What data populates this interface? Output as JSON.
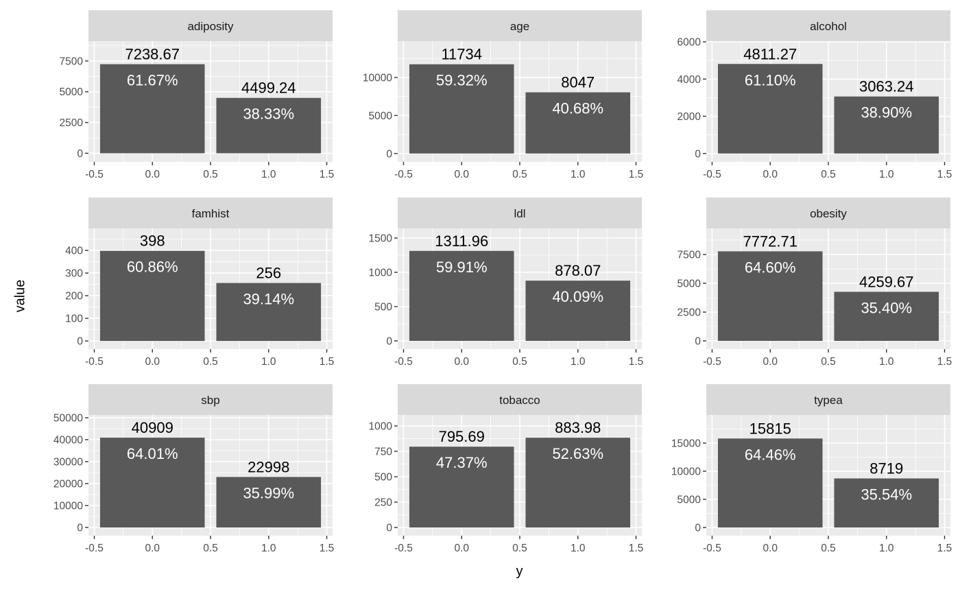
{
  "chart_data": {
    "type": "bar",
    "xlabel": "y",
    "ylabel": "value",
    "x_ticks": [
      -0.5,
      0.0,
      0.5,
      1.0,
      1.5
    ],
    "x_tick_labels": [
      "-0.5",
      "0.0",
      "0.5",
      "1.0",
      "1.5"
    ],
    "xlim": [
      -0.55,
      1.55
    ],
    "grid": true,
    "bar_color": "#595959",
    "panel_bg": "#ebebeb",
    "strip_bg": "#d9d9d9",
    "panels": [
      {
        "title": "adiposity",
        "x": [
          0,
          1
        ],
        "values": [
          7238.67
        ],
        "values2": [
          4499.24
        ],
        "counts": [
          "7238.67",
          "4499.24"
        ],
        "percents": [
          "61.67%",
          "38.33%"
        ],
        "yticks": [
          0,
          2500,
          5000,
          7500
        ],
        "ylim": [
          -700,
          9111
        ]
      },
      {
        "title": "age",
        "x": [
          0,
          1
        ],
        "values": [
          11734
        ],
        "values2": [
          8047
        ],
        "counts": [
          "11734",
          "8047"
        ],
        "percents": [
          "59.32%",
          "40.68%"
        ],
        "yticks": [
          0,
          5000,
          10000
        ],
        "ylim": [
          -1100,
          14775
        ]
      },
      {
        "title": "alcohol",
        "x": [
          0,
          1
        ],
        "values": [
          4811.27
        ],
        "values2": [
          3063.24
        ],
        "counts": [
          "4811.27",
          "3063.24"
        ],
        "percents": [
          "61.10%",
          "38.90%"
        ],
        "yticks": [
          0,
          2000,
          4000,
          6000
        ],
        "ylim": [
          -450,
          6037
        ]
      },
      {
        "title": "famhist",
        "x": [
          0,
          1
        ],
        "values": [
          398
        ],
        "values2": [
          256
        ],
        "counts": [
          "398",
          "256"
        ],
        "percents": [
          "60.86%",
          "39.14%"
        ],
        "yticks": [
          0,
          100,
          200,
          300,
          400
        ],
        "ylim": [
          -36,
          497
        ]
      },
      {
        "title": "ldl",
        "x": [
          0,
          1
        ],
        "values": [
          1311.96
        ],
        "values2": [
          878.07
        ],
        "counts": [
          "1311.96",
          "878.07"
        ],
        "percents": [
          "59.91%",
          "40.09%"
        ],
        "yticks": [
          0,
          500,
          1000,
          1500
        ],
        "ylim": [
          -120,
          1640
        ]
      },
      {
        "title": "obesity",
        "x": [
          0,
          1
        ],
        "values": [
          7772.71
        ],
        "values2": [
          4259.67
        ],
        "counts": [
          "7772.71",
          "4259.67"
        ],
        "percents": [
          "64.60%",
          "35.40%"
        ],
        "yticks": [
          0,
          2500,
          5000,
          7500
        ],
        "ylim": [
          -714,
          9762
        ]
      },
      {
        "title": "sbp",
        "x": [
          0,
          1
        ],
        "values": [
          40909
        ],
        "values2": [
          22998
        ],
        "counts": [
          "40909",
          "22998"
        ],
        "percents": [
          "64.01%",
          "35.99%"
        ],
        "yticks": [
          0,
          10000,
          20000,
          30000,
          40000,
          50000
        ],
        "ylim": [
          -3750,
          51250
        ]
      },
      {
        "title": "tobacco",
        "x": [
          0,
          1
        ],
        "values": [
          795.69
        ],
        "values2": [
          883.98
        ],
        "counts": [
          "795.69",
          "883.98"
        ],
        "percents": [
          "47.37%",
          "52.63%"
        ],
        "yticks": [
          0,
          250,
          500,
          750,
          1000
        ],
        "ylim": [
          -81,
          1108
        ]
      },
      {
        "title": "typea",
        "x": [
          0,
          1
        ],
        "values": [
          15815
        ],
        "values2": [
          8719
        ],
        "counts": [
          "15815",
          "8719"
        ],
        "percents": [
          "64.46%",
          "35.54%"
        ],
        "yticks": [
          0,
          5000,
          10000,
          15000
        ],
        "ylim": [
          -1460,
          20000
        ]
      }
    ]
  }
}
